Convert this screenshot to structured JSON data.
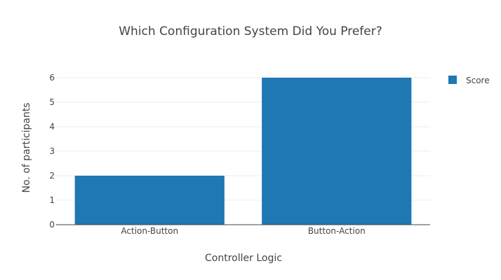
{
  "chart_data": {
    "type": "bar",
    "title": "Which Configuration System Did You Prefer?",
    "xlabel": "Controller Logic",
    "ylabel": "No. of participants",
    "categories": [
      "Action-Button",
      "Button-Action"
    ],
    "series": [
      {
        "name": "Score",
        "values": [
          2,
          6
        ],
        "color": "#1f77b4"
      }
    ],
    "ylim": [
      0,
      6
    ],
    "yticks": [
      0,
      1,
      2,
      3,
      4,
      5,
      6
    ],
    "grid": true,
    "legend": "top-right"
  }
}
